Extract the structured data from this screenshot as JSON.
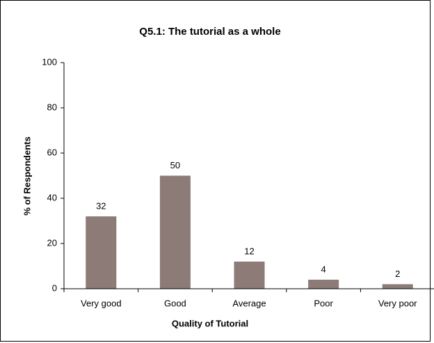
{
  "chart_data": {
    "type": "bar",
    "title": "Q5.1: The tutorial as a whole",
    "xlabel": "Quality of Tutorial",
    "ylabel": "% of Respondents",
    "categories": [
      "Very good",
      "Good",
      "Average",
      "Poor",
      "Very poor"
    ],
    "values": [
      32,
      50,
      12,
      4,
      2
    ],
    "color": "#8c7b76",
    "ylim": [
      0,
      100
    ],
    "yticks": [
      0,
      20,
      40,
      60,
      80,
      100
    ],
    "grid": false
  }
}
